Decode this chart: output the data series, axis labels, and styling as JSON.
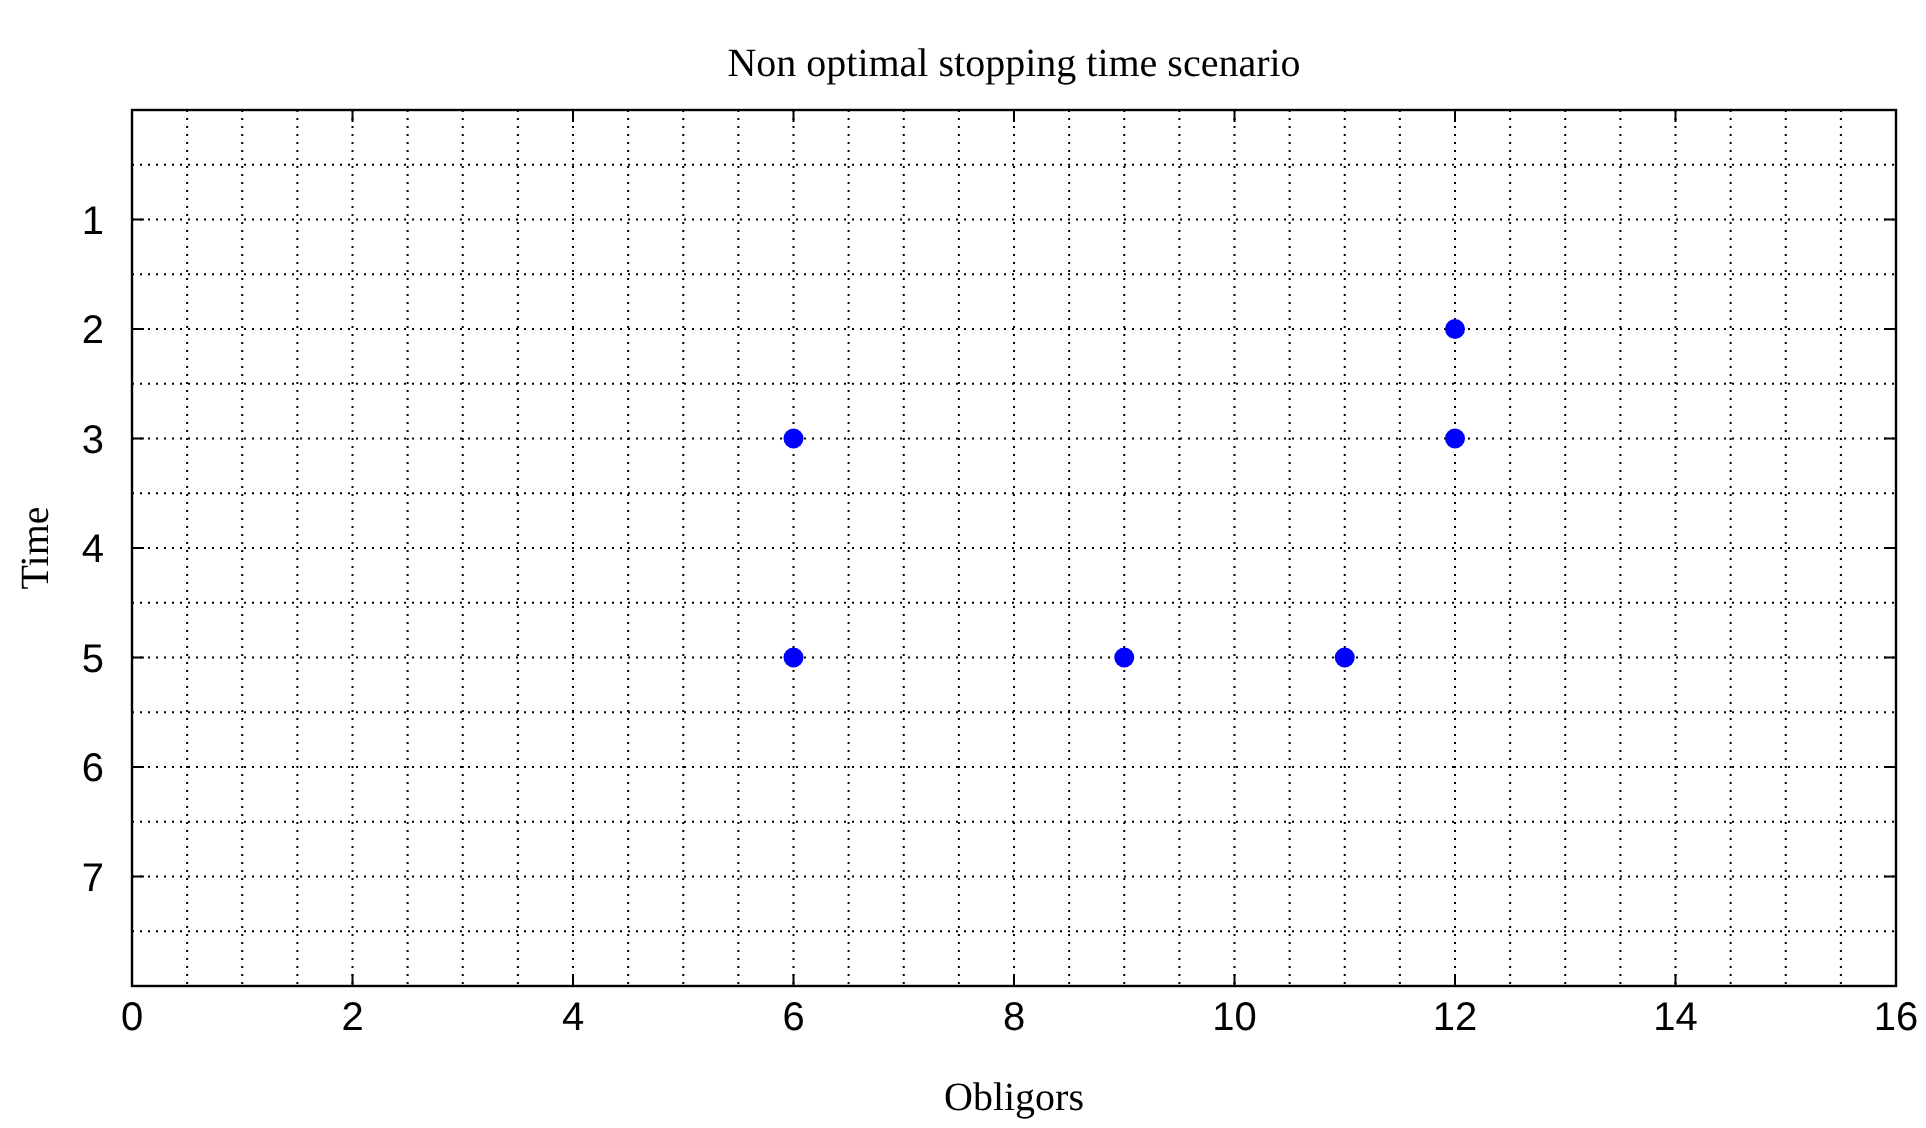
{
  "chart_data": {
    "type": "scatter",
    "title": "Non optimal stopping time scenario",
    "xlabel": "Obligors",
    "ylabel": "Time",
    "x": [
      6,
      6,
      9,
      11,
      12,
      12
    ],
    "series": [
      {
        "color": "#0000ff",
        "values": [
          3,
          5,
          5,
          5,
          2,
          3
        ]
      }
    ],
    "xlim": [
      0,
      16
    ],
    "xticks": [
      0,
      {
        "value": 0.5,
        "label": null
      },
      2,
      {
        "value": 1,
        "label": null
      },
      {
        "value": 1.5,
        "label": null
      },
      {
        "value": 2.5,
        "label": null
      },
      {
        "value": 3,
        "label": null
      },
      {
        "value": 3.5,
        "label": null
      },
      4,
      {
        "value": 4.5,
        "label": null
      },
      {
        "value": 5,
        "label": null
      },
      {
        "value": 5.5,
        "label": null
      },
      6,
      {
        "value": 6.5,
        "label": null
      },
      {
        "value": 7,
        "label": null
      },
      {
        "value": 7.5,
        "label": null
      },
      8,
      {
        "value": 8.5,
        "label": null
      },
      {
        "value": 9,
        "label": null
      },
      {
        "value": 9.5,
        "label": null
      },
      10,
      {
        "value": 10.5,
        "label": null
      },
      {
        "value": 11,
        "label": null
      },
      {
        "value": 11.5,
        "label": null
      },
      12,
      {
        "value": 12.5,
        "label": null
      },
      {
        "value": 13,
        "label": null
      },
      {
        "value": 13.5,
        "label": null
      },
      14,
      {
        "value": 14.5,
        "label": null
      },
      {
        "value": 15,
        "label": null
      },
      {
        "value": 15.5,
        "label": null
      },
      16
    ],
    "ylim": [
      8,
      0
    ],
    "yticks": [
      {
        "value": 0.5,
        "label": null
      },
      1,
      {
        "value": 1.5,
        "label": null
      },
      2,
      {
        "value": 2.5,
        "label": null
      },
      3,
      {
        "value": 3.5,
        "label": null
      },
      4,
      {
        "value": 4.5,
        "label": null
      },
      5,
      {
        "value": 5.5,
        "label": null
      },
      6,
      {
        "value": 6.5,
        "label": null
      },
      7,
      {
        "value": 7.5,
        "label": null
      }
    ],
    "grid": true,
    "marker": "circle",
    "line_style": "dotted"
  }
}
